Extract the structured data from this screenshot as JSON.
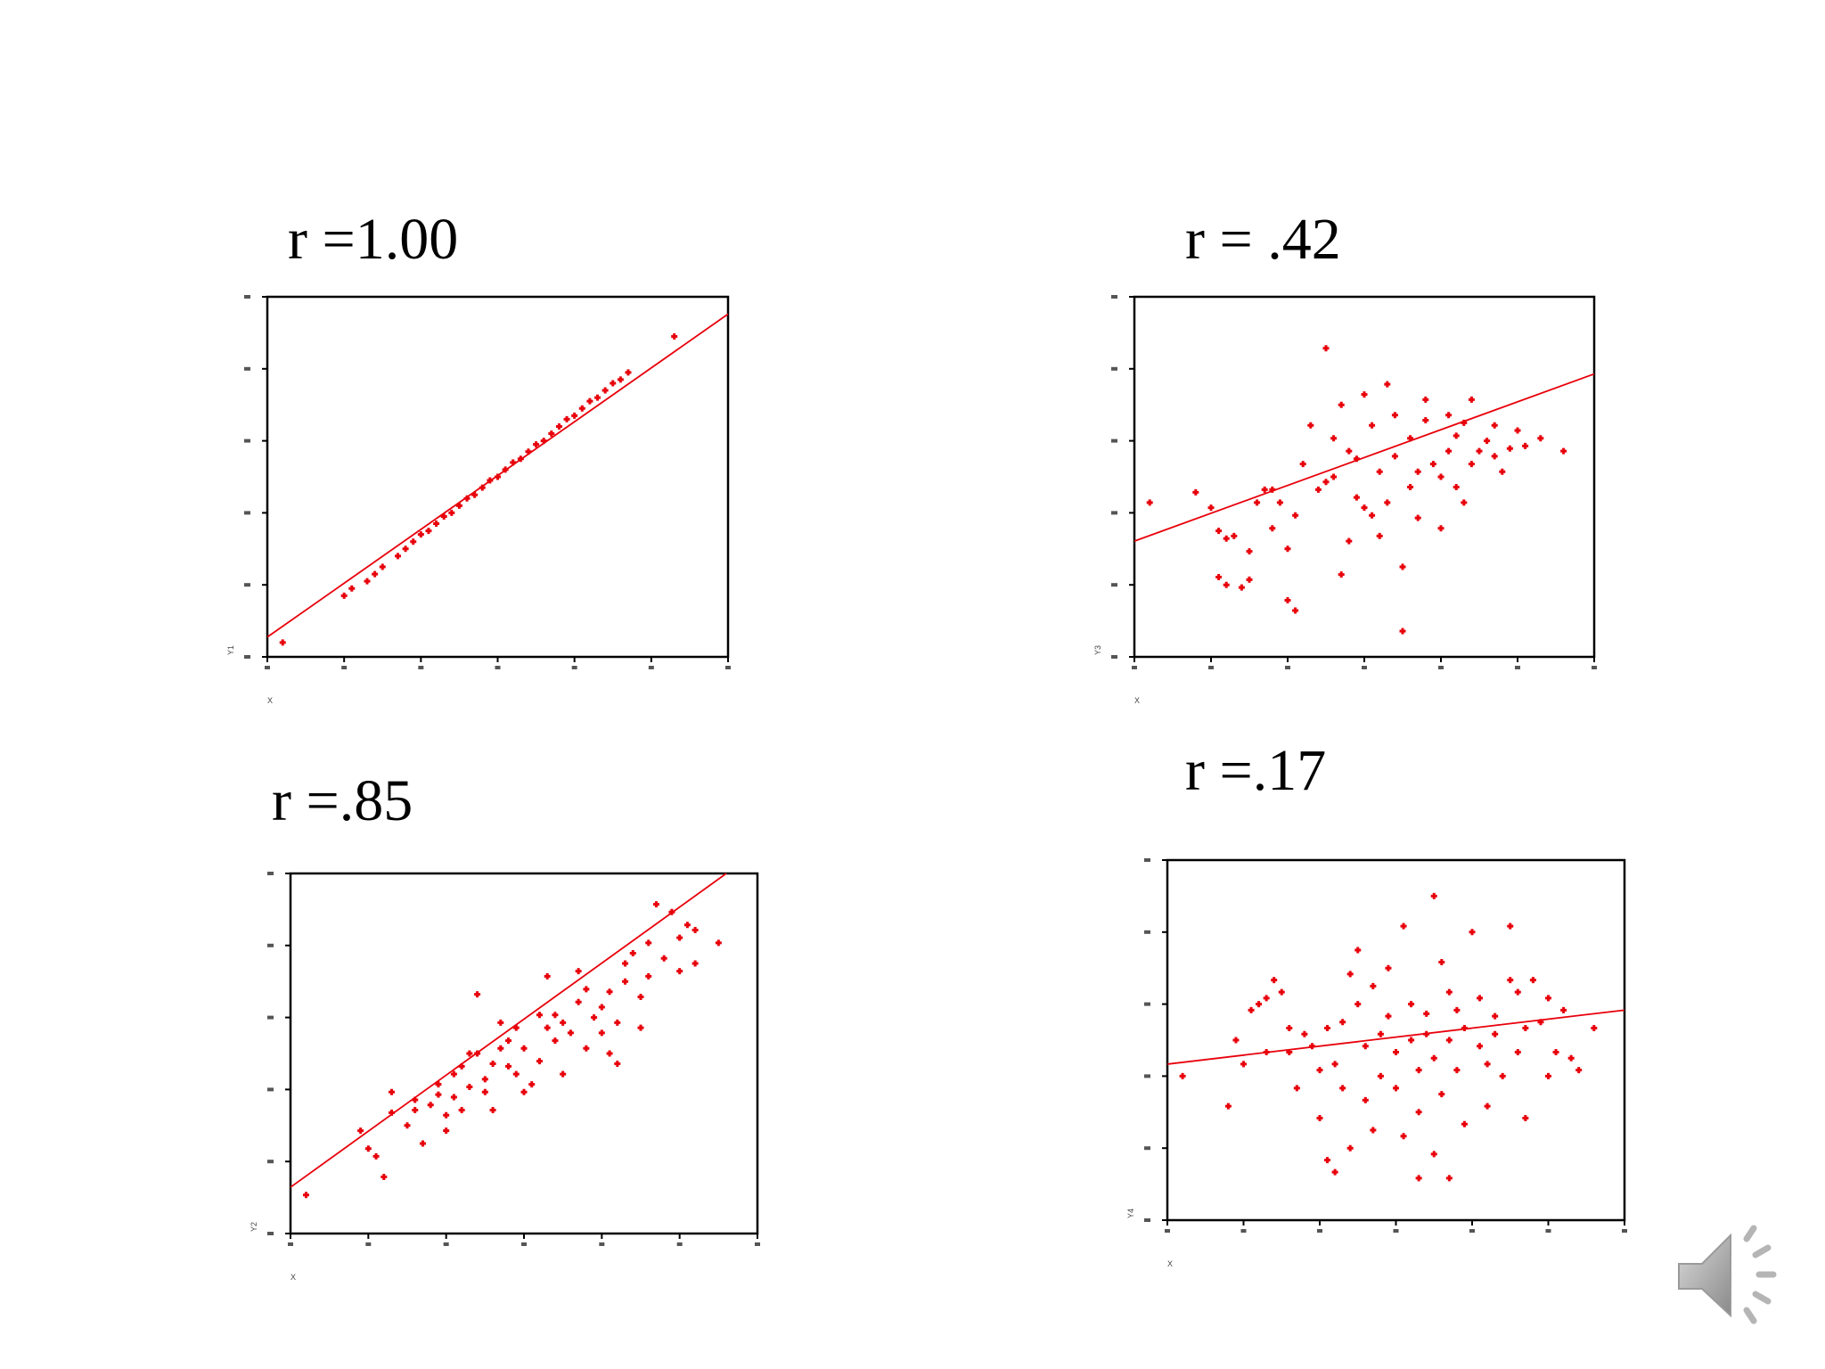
{
  "chart_data": [
    {
      "type": "scatter",
      "title": "r =1.00",
      "xlabel": "X",
      "ylabel": "Y1",
      "xlim": [
        20,
        80
      ],
      "ylim": [
        0,
        100
      ],
      "color": "#e8000b",
      "points": [
        [
          22,
          4
        ],
        [
          30,
          17
        ],
        [
          31,
          19
        ],
        [
          33,
          21
        ],
        [
          34,
          23
        ],
        [
          35,
          25
        ],
        [
          37,
          28
        ],
        [
          38,
          30
        ],
        [
          39,
          32
        ],
        [
          40,
          34
        ],
        [
          41,
          35
        ],
        [
          42,
          37
        ],
        [
          43,
          39
        ],
        [
          44,
          40
        ],
        [
          45,
          42
        ],
        [
          46,
          44
        ],
        [
          47,
          45
        ],
        [
          48,
          47
        ],
        [
          49,
          49
        ],
        [
          50,
          50
        ],
        [
          51,
          52
        ],
        [
          52,
          54
        ],
        [
          53,
          55
        ],
        [
          54,
          57
        ],
        [
          55,
          59
        ],
        [
          56,
          60
        ],
        [
          57,
          62
        ],
        [
          58,
          64
        ],
        [
          59,
          66
        ],
        [
          60,
          67
        ],
        [
          61,
          69
        ],
        [
          62,
          71
        ],
        [
          63,
          72
        ],
        [
          64,
          74
        ],
        [
          65,
          76
        ],
        [
          66,
          77
        ],
        [
          67,
          79
        ],
        [
          73,
          89
        ]
      ],
      "fit": [
        [
          20,
          5.5
        ],
        [
          80,
          95.2
        ]
      ]
    },
    {
      "type": "scatter",
      "title": "r = .42",
      "xlabel": "X",
      "ylabel": "Y3",
      "xlim": [
        20,
        80
      ],
      "ylim": [
        -20,
        120
      ],
      "color": "#e8000b",
      "points": [
        [
          22,
          40
        ],
        [
          28,
          44
        ],
        [
          30,
          38
        ],
        [
          31,
          29
        ],
        [
          32,
          26
        ],
        [
          33,
          27
        ],
        [
          31,
          11
        ],
        [
          32,
          8
        ],
        [
          34,
          7
        ],
        [
          35,
          10
        ],
        [
          35,
          21
        ],
        [
          36,
          40
        ],
        [
          37,
          45
        ],
        [
          38,
          45
        ],
        [
          39,
          40
        ],
        [
          38,
          30
        ],
        [
          40,
          2
        ],
        [
          41,
          -2
        ],
        [
          40,
          22
        ],
        [
          41,
          35
        ],
        [
          42,
          55
        ],
        [
          43,
          70
        ],
        [
          44,
          45
        ],
        [
          45,
          48
        ],
        [
          45,
          100
        ],
        [
          46,
          50
        ],
        [
          46,
          65
        ],
        [
          47,
          78
        ],
        [
          47,
          12
        ],
        [
          48,
          25
        ],
        [
          48,
          60
        ],
        [
          49,
          57
        ],
        [
          49,
          42
        ],
        [
          50,
          82
        ],
        [
          50,
          38
        ],
        [
          51,
          35
        ],
        [
          51,
          70
        ],
        [
          52,
          52
        ],
        [
          52,
          27
        ],
        [
          53,
          86
        ],
        [
          53,
          40
        ],
        [
          54,
          58
        ],
        [
          54,
          74
        ],
        [
          55,
          -10
        ],
        [
          55,
          15
        ],
        [
          56,
          65
        ],
        [
          56,
          46
        ],
        [
          57,
          52
        ],
        [
          57,
          34
        ],
        [
          58,
          72
        ],
        [
          58,
          80
        ],
        [
          59,
          55
        ],
        [
          60,
          50
        ],
        [
          60,
          30
        ],
        [
          61,
          74
        ],
        [
          61,
          60
        ],
        [
          62,
          46
        ],
        [
          62,
          66
        ],
        [
          63,
          71
        ],
        [
          63,
          40
        ],
        [
          64,
          55
        ],
        [
          64,
          80
        ],
        [
          65,
          60
        ],
        [
          66,
          64
        ],
        [
          67,
          58
        ],
        [
          67,
          70
        ],
        [
          68,
          52
        ],
        [
          69,
          61
        ],
        [
          70,
          68
        ],
        [
          71,
          62
        ],
        [
          73,
          65
        ],
        [
          76,
          60
        ]
      ],
      "fit": [
        [
          20,
          25
        ],
        [
          80,
          90
        ]
      ]
    },
    {
      "type": "scatter",
      "title": "r =.85",
      "xlabel": "X",
      "ylabel": "Y2",
      "xlim": [
        20,
        80
      ],
      "ylim": [
        -10,
        130
      ],
      "color": "#e8000b",
      "points": [
        [
          22,
          5
        ],
        [
          29,
          30
        ],
        [
          30,
          23
        ],
        [
          31,
          20
        ],
        [
          32,
          12
        ],
        [
          33,
          37
        ],
        [
          33,
          45
        ],
        [
          35,
          32
        ],
        [
          36,
          38
        ],
        [
          36,
          42
        ],
        [
          37,
          25
        ],
        [
          38,
          40
        ],
        [
          39,
          44
        ],
        [
          39,
          48
        ],
        [
          40,
          36
        ],
        [
          40,
          30
        ],
        [
          41,
          43
        ],
        [
          41,
          52
        ],
        [
          42,
          55
        ],
        [
          42,
          38
        ],
        [
          43,
          60
        ],
        [
          43,
          47
        ],
        [
          44,
          83
        ],
        [
          44,
          60
        ],
        [
          45,
          45
        ],
        [
          45,
          50
        ],
        [
          46,
          38
        ],
        [
          46,
          56
        ],
        [
          47,
          72
        ],
        [
          47,
          62
        ],
        [
          48,
          55
        ],
        [
          48,
          65
        ],
        [
          49,
          70
        ],
        [
          49,
          52
        ],
        [
          50,
          62
        ],
        [
          50,
          45
        ],
        [
          51,
          48
        ],
        [
          52,
          75
        ],
        [
          52,
          57
        ],
        [
          53,
          70
        ],
        [
          53,
          90
        ],
        [
          54,
          65
        ],
        [
          54,
          75
        ],
        [
          55,
          72
        ],
        [
          55,
          52
        ],
        [
          56,
          68
        ],
        [
          57,
          80
        ],
        [
          57,
          92
        ],
        [
          58,
          85
        ],
        [
          58,
          62
        ],
        [
          59,
          74
        ],
        [
          60,
          68
        ],
        [
          60,
          78
        ],
        [
          61,
          60
        ],
        [
          61,
          84
        ],
        [
          62,
          72
        ],
        [
          62,
          56
        ],
        [
          63,
          95
        ],
        [
          63,
          88
        ],
        [
          64,
          99
        ],
        [
          65,
          70
        ],
        [
          65,
          82
        ],
        [
          66,
          90
        ],
        [
          66,
          103
        ],
        [
          67,
          118
        ],
        [
          68,
          97
        ],
        [
          69,
          115
        ],
        [
          70,
          105
        ],
        [
          70,
          92
        ],
        [
          71,
          110
        ],
        [
          72,
          108
        ],
        [
          72,
          95
        ],
        [
          75,
          103
        ]
      ],
      "fit": [
        [
          20,
          8
        ],
        [
          76,
          130
        ]
      ]
    },
    {
      "type": "scatter",
      "title": "r =.17",
      "xlabel": "X",
      "ylabel": "Y4",
      "xlim": [
        20,
        80
      ],
      "ylim": [
        -100,
        200
      ],
      "color": "#e8000b",
      "points": [
        [
          22,
          20
        ],
        [
          28,
          -5
        ],
        [
          29,
          50
        ],
        [
          30,
          30
        ],
        [
          31,
          75
        ],
        [
          32,
          80
        ],
        [
          33,
          40
        ],
        [
          33,
          85
        ],
        [
          34,
          100
        ],
        [
          35,
          90
        ],
        [
          36,
          60
        ],
        [
          36,
          40
        ],
        [
          37,
          10
        ],
        [
          38,
          55
        ],
        [
          39,
          45
        ],
        [
          40,
          25
        ],
        [
          40,
          -15
        ],
        [
          41,
          60
        ],
        [
          41,
          -50
        ],
        [
          42,
          30
        ],
        [
          42,
          -60
        ],
        [
          43,
          65
        ],
        [
          43,
          10
        ],
        [
          44,
          105
        ],
        [
          44,
          -40
        ],
        [
          45,
          80
        ],
        [
          45,
          125
        ],
        [
          46,
          0
        ],
        [
          46,
          45
        ],
        [
          47,
          95
        ],
        [
          47,
          -25
        ],
        [
          48,
          55
        ],
        [
          48,
          20
        ],
        [
          49,
          110
        ],
        [
          49,
          70
        ],
        [
          50,
          40
        ],
        [
          50,
          10
        ],
        [
          51,
          145
        ],
        [
          51,
          -30
        ],
        [
          52,
          50
        ],
        [
          52,
          80
        ],
        [
          53,
          -10
        ],
        [
          53,
          -65
        ],
        [
          53,
          25
        ],
        [
          54,
          55
        ],
        [
          54,
          72
        ],
        [
          55,
          35
        ],
        [
          55,
          -45
        ],
        [
          55,
          170
        ],
        [
          56,
          115
        ],
        [
          56,
          5
        ],
        [
          57,
          50
        ],
        [
          57,
          90
        ],
        [
          57,
          -65
        ],
        [
          58,
          75
        ],
        [
          58,
          25
        ],
        [
          59,
          -20
        ],
        [
          59,
          60
        ],
        [
          60,
          140
        ],
        [
          61,
          45
        ],
        [
          61,
          85
        ],
        [
          62,
          30
        ],
        [
          62,
          -5
        ],
        [
          63,
          55
        ],
        [
          63,
          70
        ],
        [
          64,
          20
        ],
        [
          65,
          100
        ],
        [
          65,
          145
        ],
        [
          66,
          40
        ],
        [
          66,
          90
        ],
        [
          67,
          60
        ],
        [
          67,
          -15
        ],
        [
          68,
          100
        ],
        [
          69,
          65
        ],
        [
          70,
          85
        ],
        [
          70,
          20
        ],
        [
          71,
          40
        ],
        [
          72,
          75
        ],
        [
          73,
          35
        ],
        [
          74,
          25
        ],
        [
          76,
          60
        ]
      ],
      "fit": [
        [
          20,
          30
        ],
        [
          80,
          75
        ]
      ]
    }
  ],
  "r_labels": [
    "r =1.00",
    "r = .42",
    "r =.85",
    "r =.17"
  ],
  "icons": {
    "audio": "speaker-icon"
  }
}
